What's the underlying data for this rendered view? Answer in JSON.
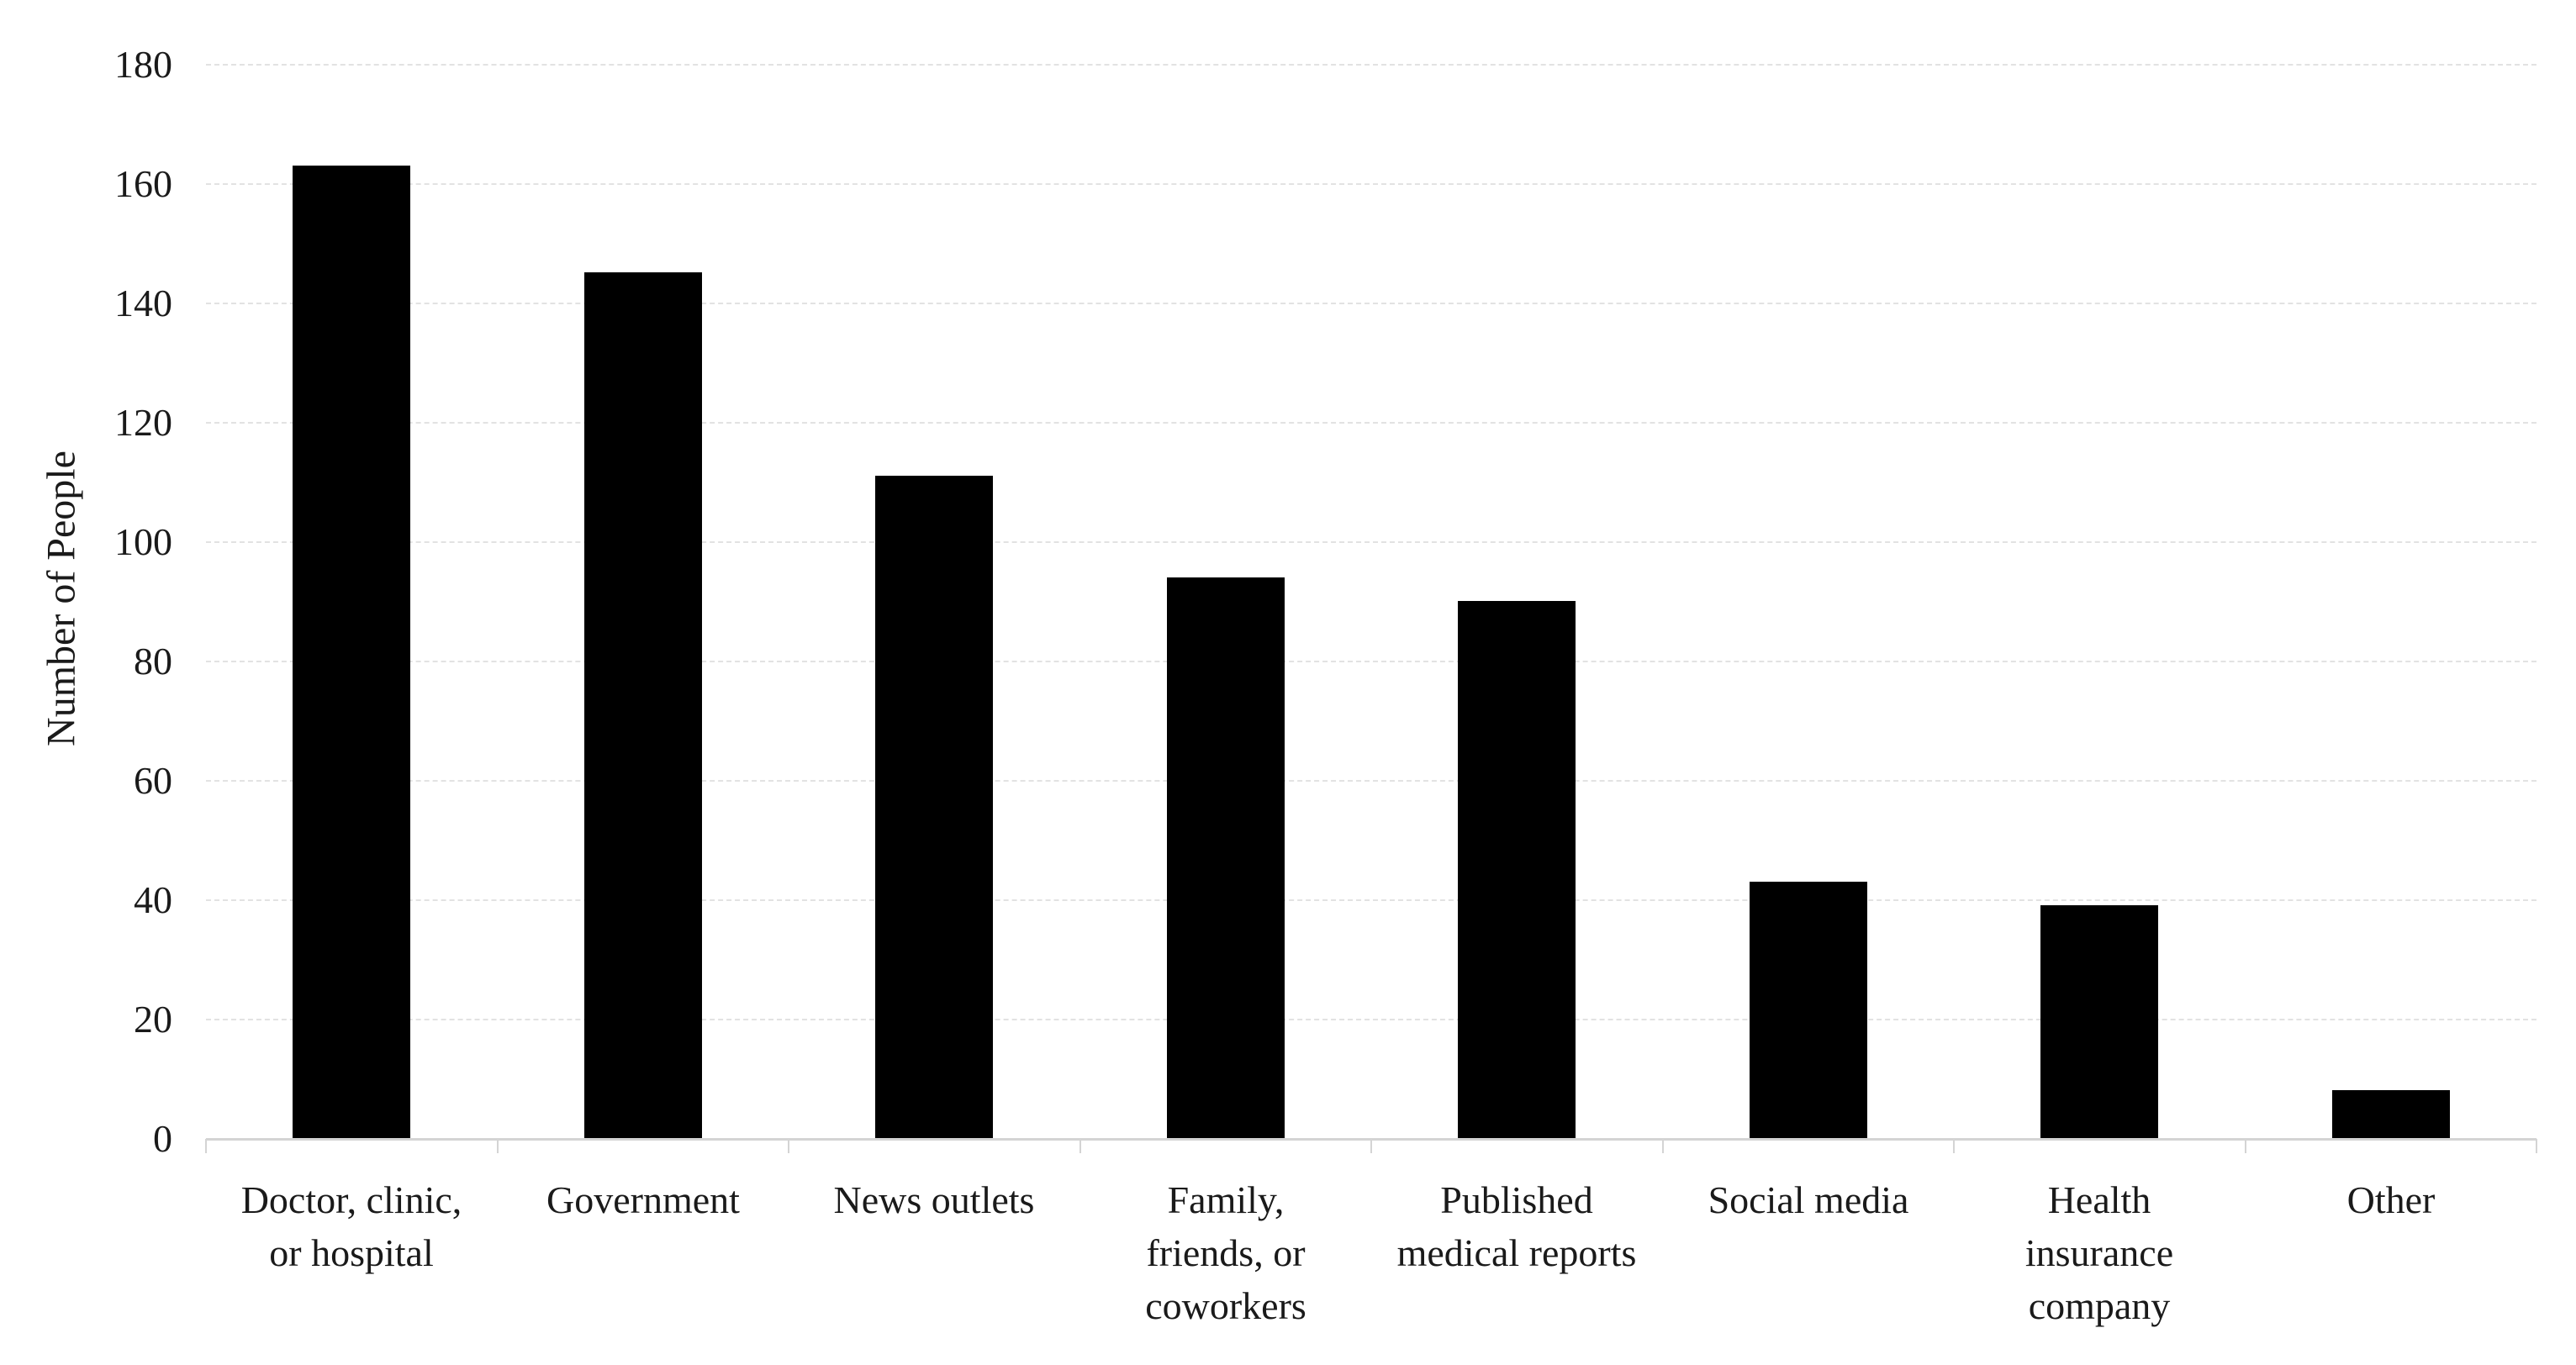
{
  "chart_data": {
    "type": "bar",
    "title": "",
    "xlabel": "",
    "ylabel": "Number of People",
    "ylim": [
      0,
      180
    ],
    "ytick_interval": 20,
    "yticks": [
      0,
      20,
      40,
      60,
      80,
      100,
      120,
      140,
      160,
      180
    ],
    "grid": true,
    "gridline_style": "dashed",
    "legend_position": "none",
    "background_color": "#ffffff",
    "bar_color": "#000000",
    "gridline_color": "#e2e2e2",
    "axis_color": "#d4d4d4",
    "text_color": "#1a1a1a",
    "categories": [
      "Doctor, clinic, or hospital",
      "Government",
      "News outlets",
      "Family, friends, or coworkers",
      "Published medical reports",
      "Social media",
      "Health insurance company",
      "Other"
    ],
    "category_label_lines": [
      [
        "Doctor, clinic,",
        "or hospital"
      ],
      [
        "Government"
      ],
      [
        "News outlets"
      ],
      [
        "Family,",
        "friends, or",
        "coworkers"
      ],
      [
        "Published",
        "medical reports"
      ],
      [
        "Social media"
      ],
      [
        "Health",
        "insurance",
        "company"
      ],
      [
        "Other"
      ]
    ],
    "values": [
      163,
      145,
      111,
      94,
      90,
      43,
      39,
      8
    ]
  }
}
